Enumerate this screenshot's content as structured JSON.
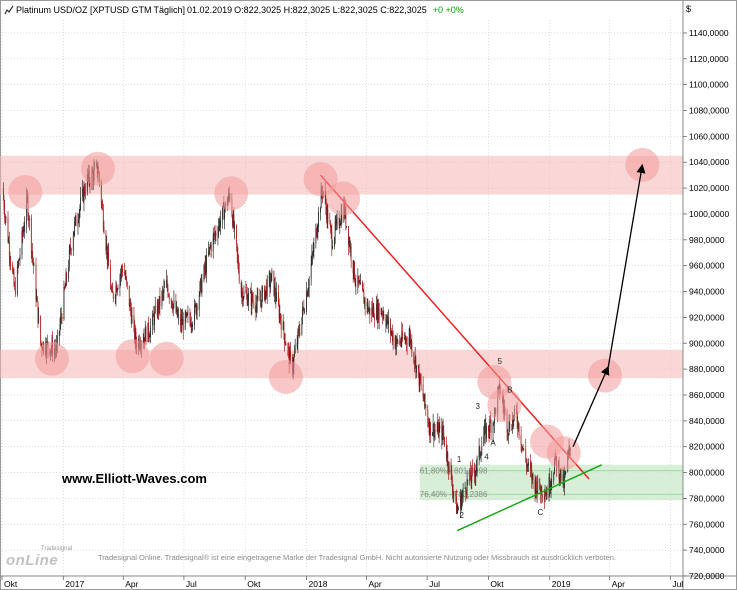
{
  "header": {
    "instrument": "Platinum USD/OZ [XPTUSD GTM",
    "interval": "Täglich]",
    "date": "01.02.2019",
    "ohlc": "O:822,3025 H:822,3025 L:822,3025 C:822,3025",
    "change": "+0 +0%"
  },
  "currency_symbol": "$",
  "watermark": "www.Elliott-Waves.com",
  "copyright": "Tradesignal Online. Tradesignal® ist eine eingetragene Marke der Tradesignal GmbH. Nicht autorisierte Nutzung oder Missbrauch ist ausdrücklich verboten.",
  "logo": {
    "word": "onLine",
    "tag": "Tradesignal"
  },
  "colors": {
    "band": "#f6b7b7",
    "circle": "#f29a9a",
    "trend_red": "#ee2222",
    "trend_green": "#1aa81a",
    "fib_band": "#c8eac8",
    "candle_up": "#2a2a2a",
    "candle_down": "#a81c1c",
    "arrow": "#000000"
  },
  "chart_data": {
    "type": "candlestick",
    "title": "Platinum USD/OZ",
    "ylim": [
      720,
      1150
    ],
    "y_ticks": [
      720,
      740,
      760,
      780,
      800,
      820,
      840,
      860,
      880,
      900,
      920,
      940,
      960,
      980,
      1000,
      1020,
      1040,
      1060,
      1080,
      1100,
      1120,
      1140
    ],
    "y_tick_labels": [
      "720,0000",
      "740,0000",
      "760,0000",
      "780,0000",
      "800,0000",
      "820,0000",
      "840,0000",
      "860,0000",
      "880,0000",
      "900,0000",
      "920,0000",
      "940,0000",
      "960,0000",
      "980,0000",
      "1000,0000",
      "1020,0000",
      "1040,0000",
      "1060,0000",
      "1080,0000",
      "1100,0000",
      "1120,0000",
      "1140,0000"
    ],
    "xlim": [
      "2016-10-01",
      "2019-07-20"
    ],
    "x_ticks": [
      {
        "date": "2016-10-01",
        "label": "Okt"
      },
      {
        "date": "2017-01-01",
        "label": "2017"
      },
      {
        "date": "2017-04-01",
        "label": "Apr"
      },
      {
        "date": "2017-07-01",
        "label": "Jul"
      },
      {
        "date": "2017-10-01",
        "label": "Okt"
      },
      {
        "date": "2018-01-01",
        "label": "2018"
      },
      {
        "date": "2018-04-01",
        "label": "Apr"
      },
      {
        "date": "2018-07-01",
        "label": "Jul"
      },
      {
        "date": "2018-10-01",
        "label": "Okt"
      },
      {
        "date": "2019-01-01",
        "label": "2019"
      },
      {
        "date": "2019-04-01",
        "label": "Apr"
      },
      {
        "date": "2019-07-01",
        "label": "Jul"
      }
    ],
    "grid": true,
    "price_path": [
      [
        "2016-10-01",
        1020
      ],
      [
        "2016-10-20",
        940
      ],
      [
        "2016-11-08",
        1010
      ],
      [
        "2016-11-28",
        900
      ],
      [
        "2016-12-22",
        895
      ],
      [
        "2017-01-15",
        985
      ],
      [
        "2017-02-05",
        1025
      ],
      [
        "2017-02-22",
        1035
      ],
      [
        "2017-03-15",
        935
      ],
      [
        "2017-04-01",
        960
      ],
      [
        "2017-04-20",
        900
      ],
      [
        "2017-05-10",
        910
      ],
      [
        "2017-06-05",
        945
      ],
      [
        "2017-06-25",
        915
      ],
      [
        "2017-07-15",
        920
      ],
      [
        "2017-08-10",
        975
      ],
      [
        "2017-09-08",
        1015
      ],
      [
        "2017-09-25",
        940
      ],
      [
        "2017-10-20",
        930
      ],
      [
        "2017-11-10",
        950
      ],
      [
        "2017-12-10",
        880
      ],
      [
        "2018-01-05",
        950
      ],
      [
        "2018-01-25",
        1020
      ],
      [
        "2018-02-08",
        980
      ],
      [
        "2018-02-26",
        1005
      ],
      [
        "2018-03-15",
        950
      ],
      [
        "2018-04-05",
        925
      ],
      [
        "2018-04-25",
        925
      ],
      [
        "2018-05-15",
        900
      ],
      [
        "2018-06-05",
        905
      ],
      [
        "2018-06-20",
        870
      ],
      [
        "2018-07-05",
        835
      ],
      [
        "2018-07-25",
        830
      ],
      [
        "2018-08-15",
        770
      ],
      [
        "2018-08-28",
        790
      ],
      [
        "2018-09-10",
        800
      ],
      [
        "2018-09-25",
        830
      ],
      [
        "2018-10-08",
        840
      ],
      [
        "2018-10-18",
        865
      ],
      [
        "2018-10-30",
        835
      ],
      [
        "2018-11-12",
        845
      ],
      [
        "2018-11-25",
        810
      ],
      [
        "2018-12-10",
        790
      ],
      [
        "2018-12-28",
        785
      ],
      [
        "2019-01-10",
        810
      ],
      [
        "2019-01-22",
        790
      ],
      [
        "2019-02-01",
        822
      ]
    ],
    "last_close": 822.3025,
    "resistance_band": [
      1015,
      1045
    ],
    "support_band": [
      873,
      895
    ],
    "fibonacci": [
      {
        "label": "61,80% - 801,3998",
        "value": 801.3998
      },
      {
        "label": "76,40% - 783,2386",
        "value": 783.2386
      }
    ],
    "fib_band_end": "2019-07-20",
    "trendlines": [
      {
        "color": "red",
        "from": [
          "2018-01-22",
          1030
        ],
        "to": [
          "2019-03-01",
          795
        ]
      },
      {
        "color": "green",
        "from": [
          "2018-08-15",
          755
        ],
        "to": [
          "2019-03-20",
          806
        ]
      }
    ],
    "arrows": [
      {
        "from": [
          "2019-02-05",
          820
        ],
        "to": [
          "2019-03-30",
          882
        ]
      },
      {
        "from": [
          "2019-03-30",
          882
        ],
        "to": [
          "2019-05-20",
          1038
        ]
      }
    ],
    "circles": [
      [
        "2016-11-05",
        1017
      ],
      [
        "2017-02-22",
        1035
      ],
      [
        "2017-09-10",
        1016
      ],
      [
        "2018-01-22",
        1027
      ],
      [
        "2018-02-25",
        1012
      ],
      [
        "2016-12-15",
        888
      ],
      [
        "2017-04-15",
        890
      ],
      [
        "2017-06-05",
        888
      ],
      [
        "2017-12-01",
        874
      ],
      [
        "2018-10-10",
        870
      ],
      [
        "2018-10-25",
        852
      ],
      [
        "2018-12-28",
        824
      ],
      [
        "2019-01-22",
        815
      ],
      [
        "2019-03-25",
        875
      ],
      [
        "2019-05-20",
        1038
      ]
    ],
    "wave_labels": [
      {
        "label": "1",
        "at": [
          "2018-08-18",
          808
        ]
      },
      {
        "label": "2",
        "at": [
          "2018-08-22",
          765
        ]
      },
      {
        "label": "3",
        "at": [
          "2018-09-15",
          849
        ]
      },
      {
        "label": "4",
        "at": [
          "2018-09-28",
          810
        ]
      },
      {
        "label": "5",
        "at": [
          "2018-10-18",
          884
        ]
      },
      {
        "label": "A",
        "at": [
          "2018-10-08",
          821
        ]
      },
      {
        "label": "B",
        "at": [
          "2018-11-02",
          862
        ]
      },
      {
        "label": "C",
        "at": [
          "2018-12-18",
          767
        ]
      }
    ]
  }
}
